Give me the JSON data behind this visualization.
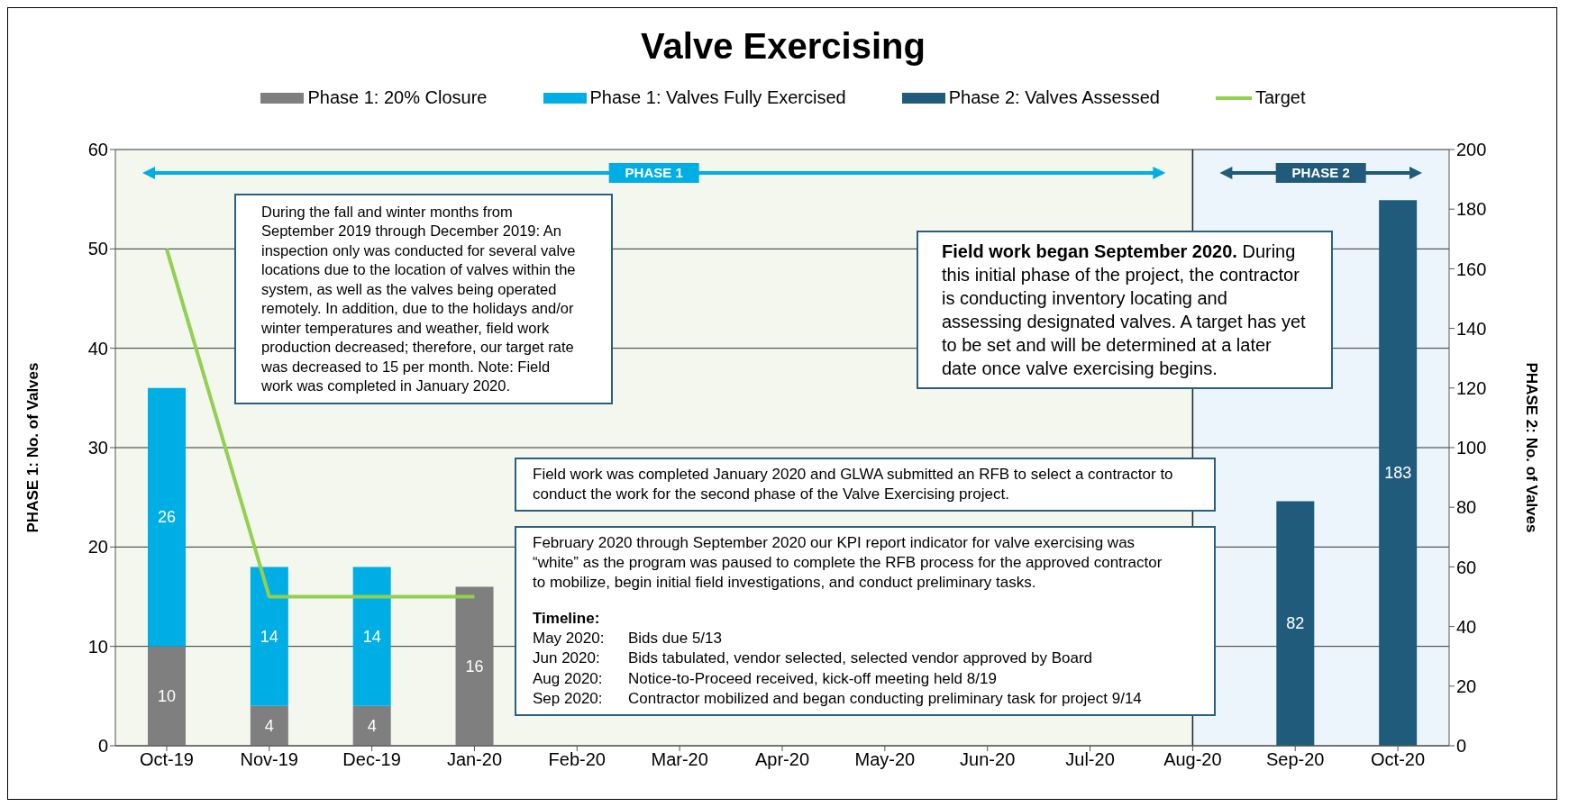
{
  "chart_data": {
    "type": "bar",
    "title": "Valve Exercising",
    "categories": [
      "Oct-19",
      "Nov-19",
      "Dec-19",
      "Jan-20",
      "Feb-20",
      "Mar-20",
      "Apr-20",
      "May-20",
      "Jun-20",
      "Jul-20",
      "Aug-20",
      "Sep-20",
      "Oct-20"
    ],
    "stacked": true,
    "series": [
      {
        "name": "Phase 1: 20% Closure",
        "color": "#7f7f7f",
        "values": [
          10,
          4,
          4,
          16,
          null,
          null,
          null,
          null,
          null,
          null,
          null,
          null,
          null
        ],
        "value_labels": [
          "10",
          "4",
          "4",
          "16",
          null,
          null,
          null,
          null,
          null,
          null,
          null,
          null,
          null
        ]
      },
      {
        "name": "Phase 1: Valves Fully Exercised",
        "color": "#00aee6",
        "values": [
          26,
          14,
          14,
          null,
          null,
          null,
          null,
          null,
          null,
          null,
          null,
          null,
          null
        ],
        "value_labels": [
          "26",
          "14",
          "14",
          null,
          null,
          null,
          null,
          null,
          null,
          null,
          null,
          null,
          null
        ]
      },
      {
        "name": "Phase 2: Valves Assessed",
        "axis": "y2",
        "color": "#215b7b",
        "values": [
          null,
          null,
          null,
          null,
          null,
          null,
          null,
          null,
          null,
          null,
          null,
          82,
          183
        ],
        "value_labels": [
          null,
          null,
          null,
          null,
          null,
          null,
          null,
          null,
          null,
          null,
          null,
          "82",
          "183"
        ]
      },
      {
        "name": "Target",
        "type": "line",
        "color": "#92d050",
        "values": [
          50,
          15,
          15,
          15,
          null,
          null,
          null,
          null,
          null,
          null,
          null,
          null,
          null
        ]
      }
    ],
    "ylabel": "PHASE 1:  No. of Valves",
    "y2label": "PHASE 2: No. of Valves",
    "ylim": [
      0,
      60
    ],
    "yticks": [
      0,
      10,
      20,
      30,
      40,
      50,
      60
    ],
    "y2lim": [
      0,
      200
    ],
    "y2ticks": [
      0,
      20,
      40,
      60,
      80,
      100,
      120,
      140,
      160,
      180,
      200
    ],
    "ref_lines": [
      {
        "axis": "x",
        "value": "Aug-20",
        "color": "#222222"
      }
    ],
    "grid": "y",
    "legend": "top",
    "marker": "none",
    "bands": [
      {
        "axis": "x",
        "from": "Oct-19",
        "to": "Aug-20",
        "label": "PHASE 1",
        "color": "#f3f7ed"
      },
      {
        "axis": "x",
        "from": "Aug-20",
        "to": "Oct-20",
        "label": "PHASE 2",
        "color": "#ecf5fc"
      }
    ],
    "annotations": [
      "During the fall and winter months from September 2019 through December 2019: An inspection only was conducted for several valve locations due to the location of valves within the system, as well as the valves being operated remotely. In addition, due to the holidays and/or winter temperatures and weather, field work production decreased; therefore, our target rate was decreased to 15 per month. Note: Field work was completed in January 2020.",
      "Field work began September 2020.",
      "During this initial phase of the project, the contractor is conducting inventory locating and assessing designated valves. A target has yet to be set and will be determined at a later date once valve exercising begins.",
      "Field work was completed January 2020 and GLWA submitted an RFB to select a contractor to conduct the work for the second phase of the Valve Exercising project.",
      "February 2020 through September 2020 our KPI report indicator for valve exercising was “white” as the program was paused to complete the RFB process for the approved contractor to mobilize, begin initial field investigations, and conduct preliminary tasks.",
      "Timeline:",
      "May 2020: Bids due 5/13",
      "Jun 2020: Bids tabulated, vendor selected, selected vendor approved by Board",
      "Aug 2020: Notice-to-Proceed received, kick-off meeting held 8/19",
      "Sep 2020: Contractor mobilized and began conducting preliminary task for project 9/14"
    ]
  }
}
